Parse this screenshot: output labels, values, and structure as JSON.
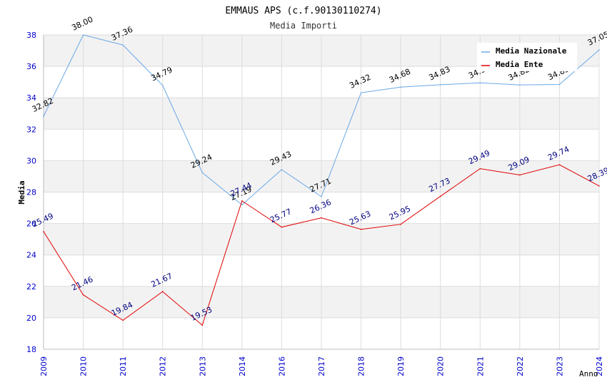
{
  "chart_data": {
    "type": "line",
    "title": "EMMAUS APS (c.f.90130110274)",
    "subtitle": "Media Importi",
    "xlabel": "Anno",
    "ylabel": "Media",
    "ylim": [
      18,
      38
    ],
    "yticks": [
      18,
      20,
      22,
      24,
      26,
      28,
      30,
      32,
      34,
      36,
      38
    ],
    "categories": [
      "2009",
      "2010",
      "2011",
      "2012",
      "2013",
      "2014",
      "2016",
      "2017",
      "2018",
      "2019",
      "2020",
      "2021",
      "2022",
      "2023",
      "2024"
    ],
    "legend_position": "top-right",
    "series": [
      {
        "name": "Media Nazionale",
        "color": "#6aa8e6",
        "label_color": "#000000",
        "values": [
          32.82,
          38.0,
          37.36,
          34.79,
          29.24,
          27.19,
          29.43,
          27.71,
          34.32,
          34.68,
          34.83,
          34.95,
          34.82,
          34.85,
          37.05
        ],
        "labels": [
          "32.82",
          "38.00",
          "37.36",
          "34.79",
          "29.24",
          "27.19",
          "29.43",
          "27.71",
          "34.32",
          "34.68",
          "34.83",
          "34.95",
          "34.82",
          "34.85",
          "37.05"
        ]
      },
      {
        "name": "Media Ente",
        "color": "#e00000",
        "label_color": "#000080",
        "values": [
          25.49,
          21.46,
          19.84,
          21.67,
          19.53,
          27.44,
          25.77,
          26.36,
          25.63,
          25.95,
          27.73,
          29.49,
          29.09,
          29.74,
          28.39
        ],
        "labels": [
          "25.49",
          "21.46",
          "19.84",
          "21.67",
          "19.53",
          "27.44",
          "25.77",
          "26.36",
          "25.63",
          "25.95",
          "27.73",
          "29.49",
          "29.09",
          "29.74",
          "28.39"
        ]
      }
    ]
  },
  "colors": {
    "band": "#f2f2f2",
    "grid": "#dddddd",
    "tick_text": "#0000cc",
    "axis_title": "#000000"
  }
}
